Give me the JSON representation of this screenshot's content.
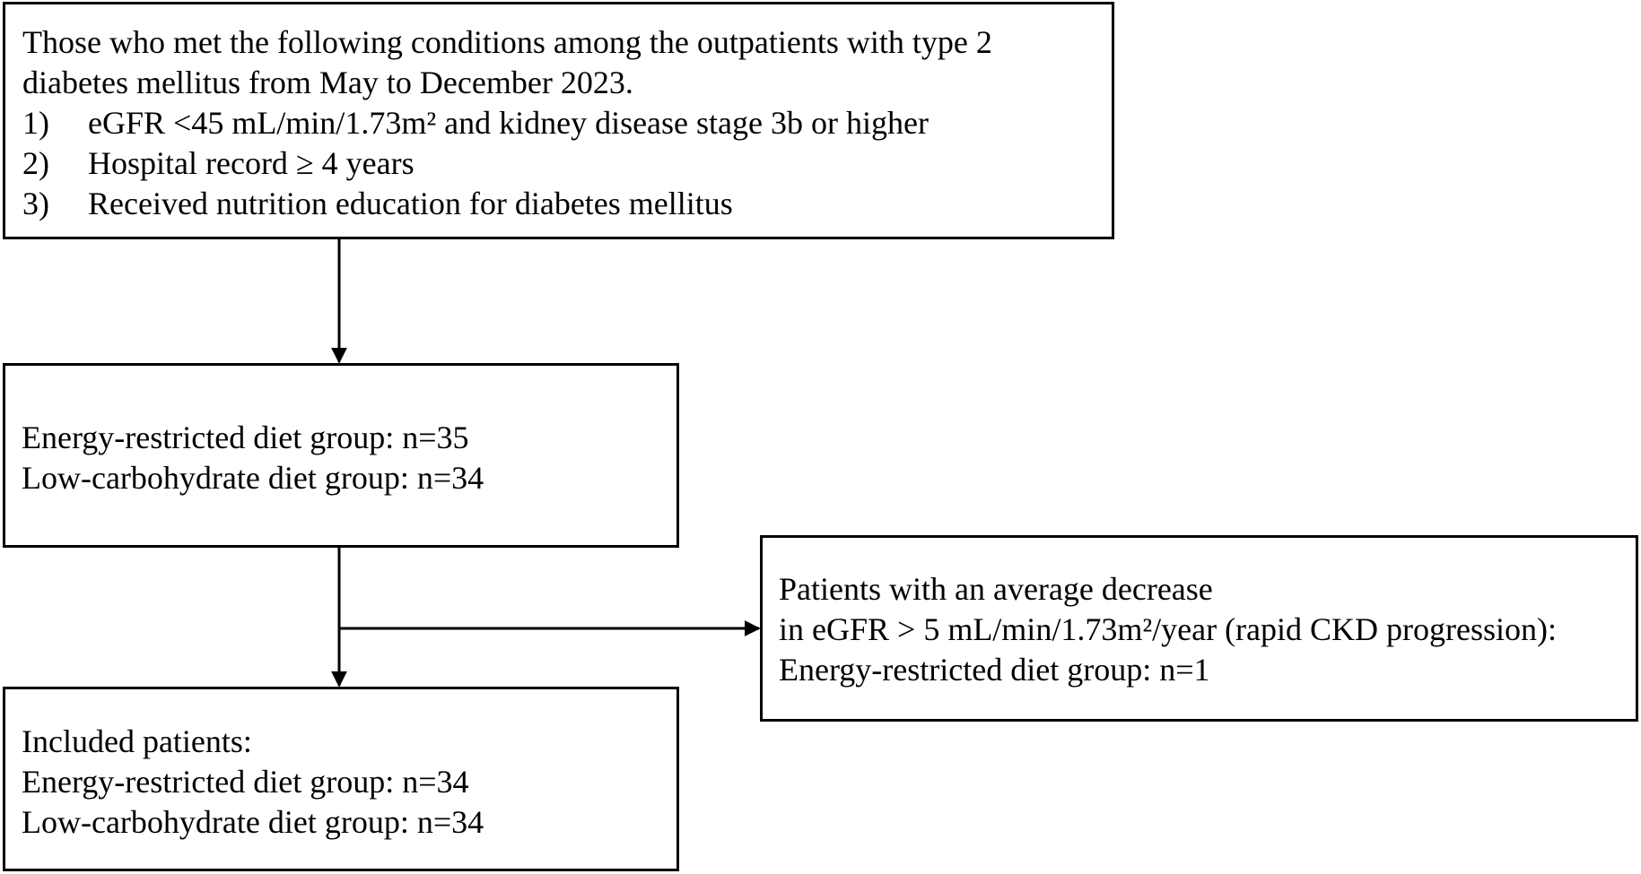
{
  "criteria_box": {
    "intro_line1": "Those who met the following conditions among the outpatients with type 2",
    "intro_line2": "diabetes mellitus from May to December 2023.",
    "conditions": [
      {
        "num": "1)",
        "text": "eGFR <45 mL/min/1.73m² and kidney disease stage 3b or higher"
      },
      {
        "num": "2)",
        "text": "Hospital record ≥ 4 years"
      },
      {
        "num": "3)",
        "text": "Received nutrition education for diabetes mellitus"
      }
    ]
  },
  "groups_box": {
    "line1": "Energy-restricted diet group: n=35",
    "line2": "Low-carbohydrate diet group: n=34"
  },
  "excluded_box": {
    "line1": "Patients with an average decrease",
    "line2": "in eGFR > 5 mL/min/1.73m²/year (rapid CKD progression):",
    "line3": "Energy-restricted diet group: n=1"
  },
  "included_box": {
    "line1": "Included patients:",
    "line2": "Energy-restricted diet group: n=34",
    "line3": "Low-carbohydrate diet group: n=34"
  },
  "colors": {
    "stroke": "#000000",
    "background": "#ffffff"
  }
}
